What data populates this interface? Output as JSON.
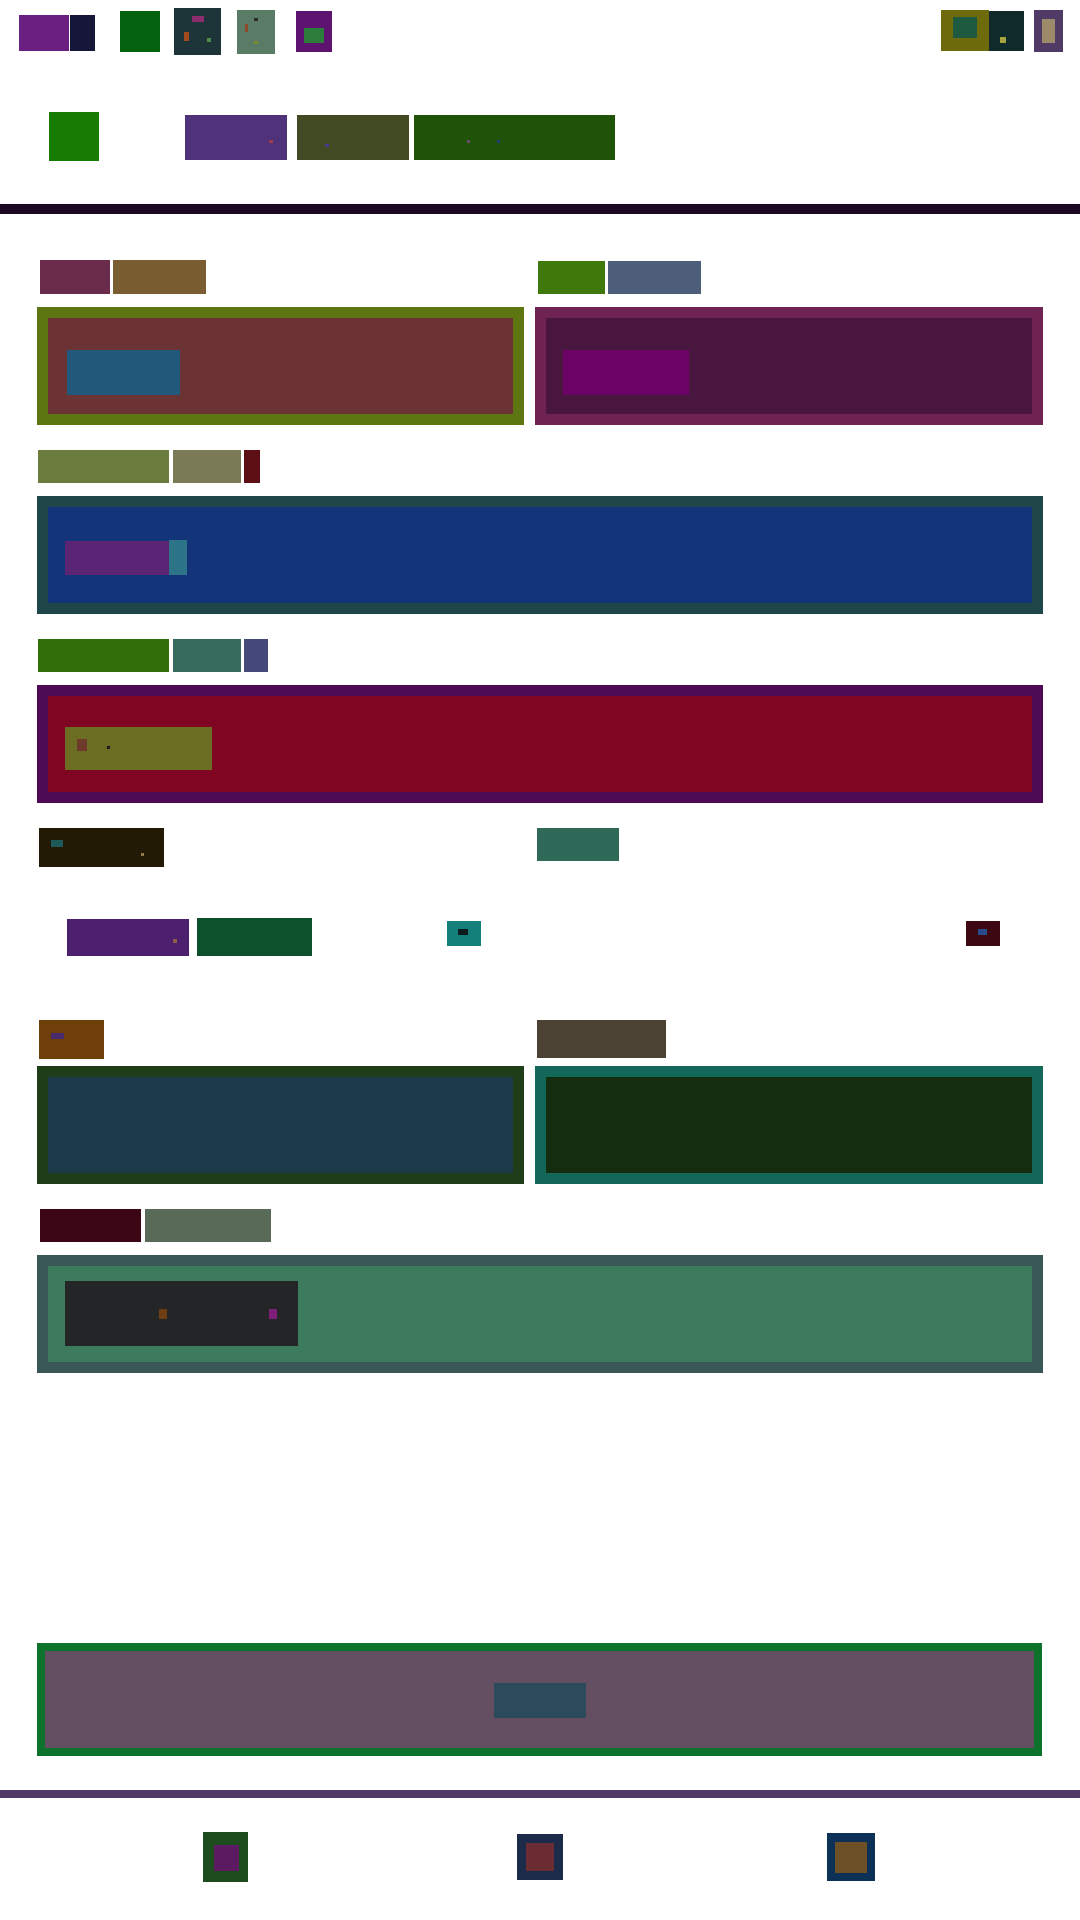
{
  "palette": {
    "page_bg": "#ffffff",
    "top_divider": "#1c0821",
    "bottom_divider": "#4f3b66",
    "card_1_border": "#5d7611",
    "card_1_fill": "#6c3335",
    "card_2_border": "#6f2353",
    "card_2_fill": "#48163e",
    "card_3_border": "#1f4649",
    "card_3_fill": "#14347a",
    "card_4_border": "#4d0b53",
    "card_4_fill": "#7f0522",
    "card_5_border": "#1f3d19",
    "card_5_fill": "#1b3b4b",
    "card_6_border": "#136759",
    "card_6_fill": "#142d0f",
    "card_7_border": "#3a5857",
    "card_7_fill": "#3c7b5b",
    "card_8_border": "#0d722c",
    "card_8_fill": "#634f61"
  },
  "header": {
    "left_icons": [
      "app-icon-purple",
      "app-icon-navy",
      "app-icon-green",
      "app-icon-dark-slate",
      "app-icon-sage",
      "app-icon-magenta"
    ],
    "right_icons": [
      "profile-icon-olive",
      "profile-icon-dark",
      "menu-icon-plum"
    ]
  },
  "toolbar": {
    "items": [
      "logo-icon",
      "tab-purple",
      "tab-olive",
      "tab-green-wide"
    ]
  },
  "footer_nav": {
    "items": [
      "nav-icon-left",
      "nav-icon-center",
      "nav-icon-right"
    ]
  }
}
